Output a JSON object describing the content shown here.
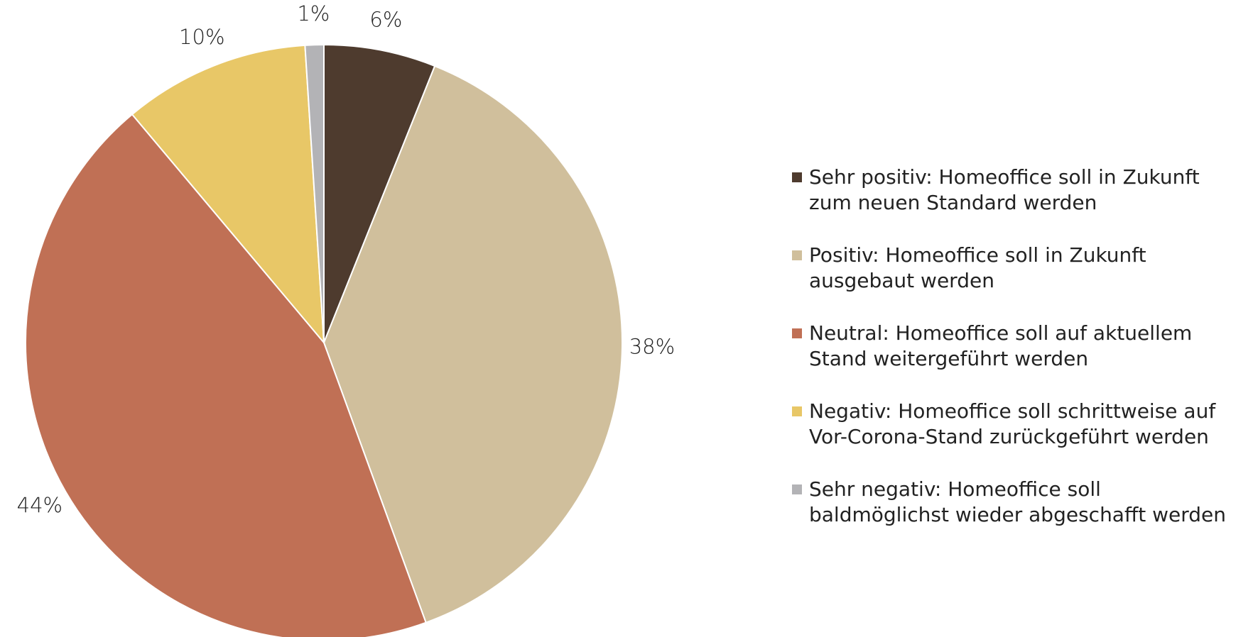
{
  "chart_data": {
    "type": "pie",
    "categories": [
      "Sehr positiv: Homeoffice soll in Zukunft zum neuen Standard werden",
      "Positiv: Homeoffice soll in Zukunft ausgebaut werden",
      "Neutral: Homeoffice soll auf aktuellem Stand weitergeführt werden",
      "Negativ: Homeoffice soll schrittweise auf Vor-Corona-Stand zurückgeführt werden",
      "Sehr negativ: Homeoffice soll baldmöglichst wieder abgeschafft werden"
    ],
    "values": [
      6,
      38,
      44,
      10,
      1
    ],
    "value_labels": [
      "6%",
      "38%",
      "44%",
      "10%",
      "1%"
    ],
    "colors": [
      "#4e3b2e",
      "#d0bf9c",
      "#c07055",
      "#e8c767",
      "#b3b3b6"
    ],
    "legend": "right"
  }
}
